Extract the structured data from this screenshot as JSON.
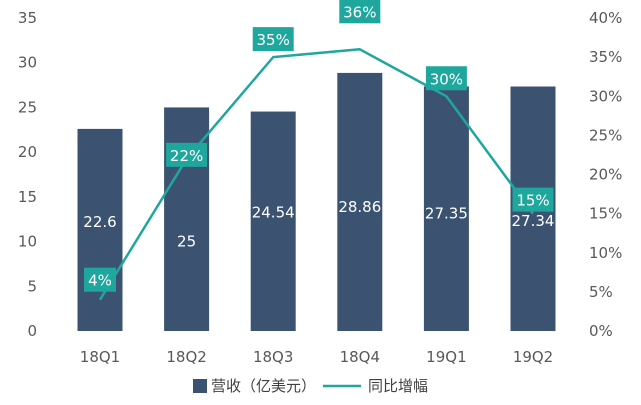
{
  "chart_data": {
    "type": "bar",
    "categories": [
      "18Q1",
      "18Q2",
      "18Q3",
      "18Q4",
      "19Q1",
      "19Q2"
    ],
    "series": [
      {
        "name": "营收（亿美元）",
        "type": "bar",
        "axis": "left",
        "values": [
          22.6,
          25,
          24.54,
          28.86,
          27.35,
          27.34
        ],
        "labels": [
          "22.6",
          "25",
          "24.54",
          "28.86",
          "27.35",
          "27.34"
        ],
        "color": "#3b5371"
      },
      {
        "name": "同比增幅",
        "type": "line",
        "axis": "right",
        "values": [
          4,
          22,
          35,
          36,
          30,
          15
        ],
        "labels": [
          "4%",
          "22%",
          "35%",
          "36%",
          "30%",
          "15%"
        ],
        "color": "#1fa79e"
      }
    ],
    "left_axis": {
      "ylim": [
        0,
        35
      ],
      "ticks": [
        "0",
        "5",
        "10",
        "15",
        "20",
        "25",
        "30",
        "35"
      ]
    },
    "right_axis": {
      "ylim": [
        0,
        40
      ],
      "ticks": [
        "0%",
        "5%",
        "10%",
        "15%",
        "20%",
        "25%",
        "30%",
        "35%",
        "40%"
      ]
    },
    "grid": false,
    "legend_position": "bottom"
  }
}
